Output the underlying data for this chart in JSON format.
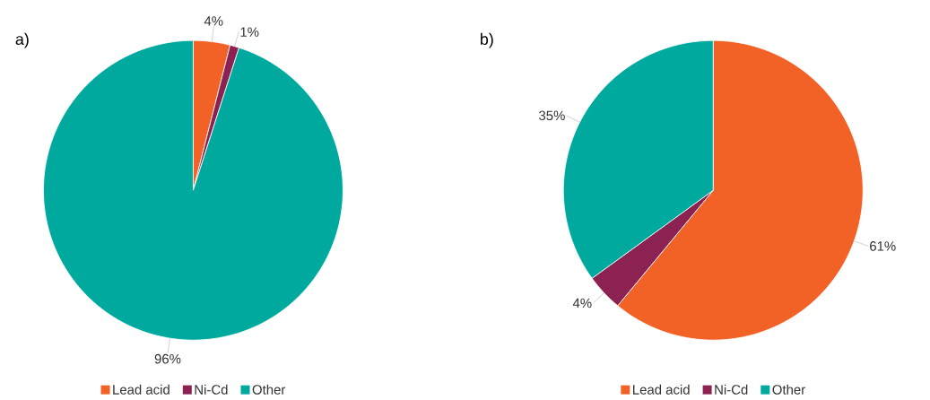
{
  "chart_data": [
    {
      "type": "pie",
      "title": "a)",
      "categories": [
        "Lead acid",
        "Ni-Cd",
        "Other"
      ],
      "values": [
        4,
        1,
        96
      ],
      "value_labels": [
        "4%",
        "1%",
        "96%"
      ],
      "colors": [
        "#f26125",
        "#8b2252",
        "#00a99d"
      ],
      "legend": "bottom"
    },
    {
      "type": "pie",
      "title": "b)",
      "categories": [
        "Lead acid",
        "Ni-Cd",
        "Other"
      ],
      "values": [
        61,
        4,
        35
      ],
      "value_labels": [
        "61%",
        "4%",
        "35%"
      ],
      "colors": [
        "#f26125",
        "#8b2252",
        "#00a99d"
      ],
      "legend": "bottom"
    }
  ]
}
